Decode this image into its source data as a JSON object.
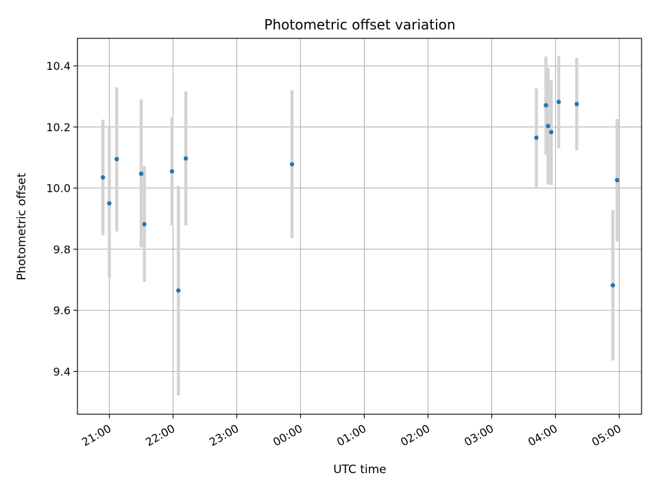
{
  "chart_data": {
    "type": "scatter",
    "title": "Photometric offset variation",
    "xlabel": "UTC time",
    "ylabel": "Photometric offset",
    "x_axis": "time",
    "x_tick_labels": [
      "21:00",
      "22:00",
      "23:00",
      "00:00",
      "01:00",
      "02:00",
      "03:00",
      "04:00",
      "05:00"
    ],
    "x_tick_times": [
      "21:00",
      "22:00",
      "23:00",
      "00:00",
      "01:00",
      "02:00",
      "03:00",
      "04:00",
      "05:00"
    ],
    "xlim": [
      "20:30",
      "05:21"
    ],
    "ylim": [
      9.26,
      10.49
    ],
    "y_ticks": [
      9.4,
      9.6,
      9.8,
      10.0,
      10.2,
      10.4
    ],
    "y_tick_labels": [
      "9.4",
      "9.6",
      "9.8",
      "10.0",
      "10.2",
      "10.4"
    ],
    "grid": true,
    "colors": {
      "point": "#1f77b4",
      "errorbar": "#d3d3d3",
      "grid": "#b0b0b0"
    },
    "points": [
      {
        "t": "20:54",
        "y": 10.035,
        "lo": 9.846,
        "hi": 10.224
      },
      {
        "t": "21:00",
        "y": 9.95,
        "lo": 9.706,
        "hi": 10.196
      },
      {
        "t": "21:07",
        "y": 10.095,
        "lo": 9.858,
        "hi": 10.33
      },
      {
        "t": "21:30",
        "y": 10.047,
        "lo": 9.806,
        "hi": 10.29
      },
      {
        "t": "21:33",
        "y": 9.882,
        "lo": 9.693,
        "hi": 10.072
      },
      {
        "t": "21:59",
        "y": 10.055,
        "lo": 9.877,
        "hi": 10.233
      },
      {
        "t": "22:05",
        "y": 9.665,
        "lo": 9.322,
        "hi": 10.008
      },
      {
        "t": "22:12",
        "y": 10.097,
        "lo": 9.878,
        "hi": 10.316
      },
      {
        "t": "23:52",
        "y": 10.078,
        "lo": 9.836,
        "hi": 10.32
      },
      {
        "t": "03:42",
        "y": 10.165,
        "lo": 10.0,
        "hi": 10.326
      },
      {
        "t": "03:51",
        "y": 10.271,
        "lo": 10.11,
        "hi": 10.431
      },
      {
        "t": "03:53",
        "y": 10.203,
        "lo": 10.012,
        "hi": 10.394
      },
      {
        "t": "03:56",
        "y": 10.183,
        "lo": 10.01,
        "hi": 10.353
      },
      {
        "t": "04:03",
        "y": 10.282,
        "lo": 10.13,
        "hi": 10.432
      },
      {
        "t": "04:20",
        "y": 10.275,
        "lo": 10.124,
        "hi": 10.426
      },
      {
        "t": "04:54",
        "y": 9.682,
        "lo": 9.436,
        "hi": 9.928
      },
      {
        "t": "04:58",
        "y": 10.026,
        "lo": 9.825,
        "hi": 10.226
      }
    ]
  }
}
